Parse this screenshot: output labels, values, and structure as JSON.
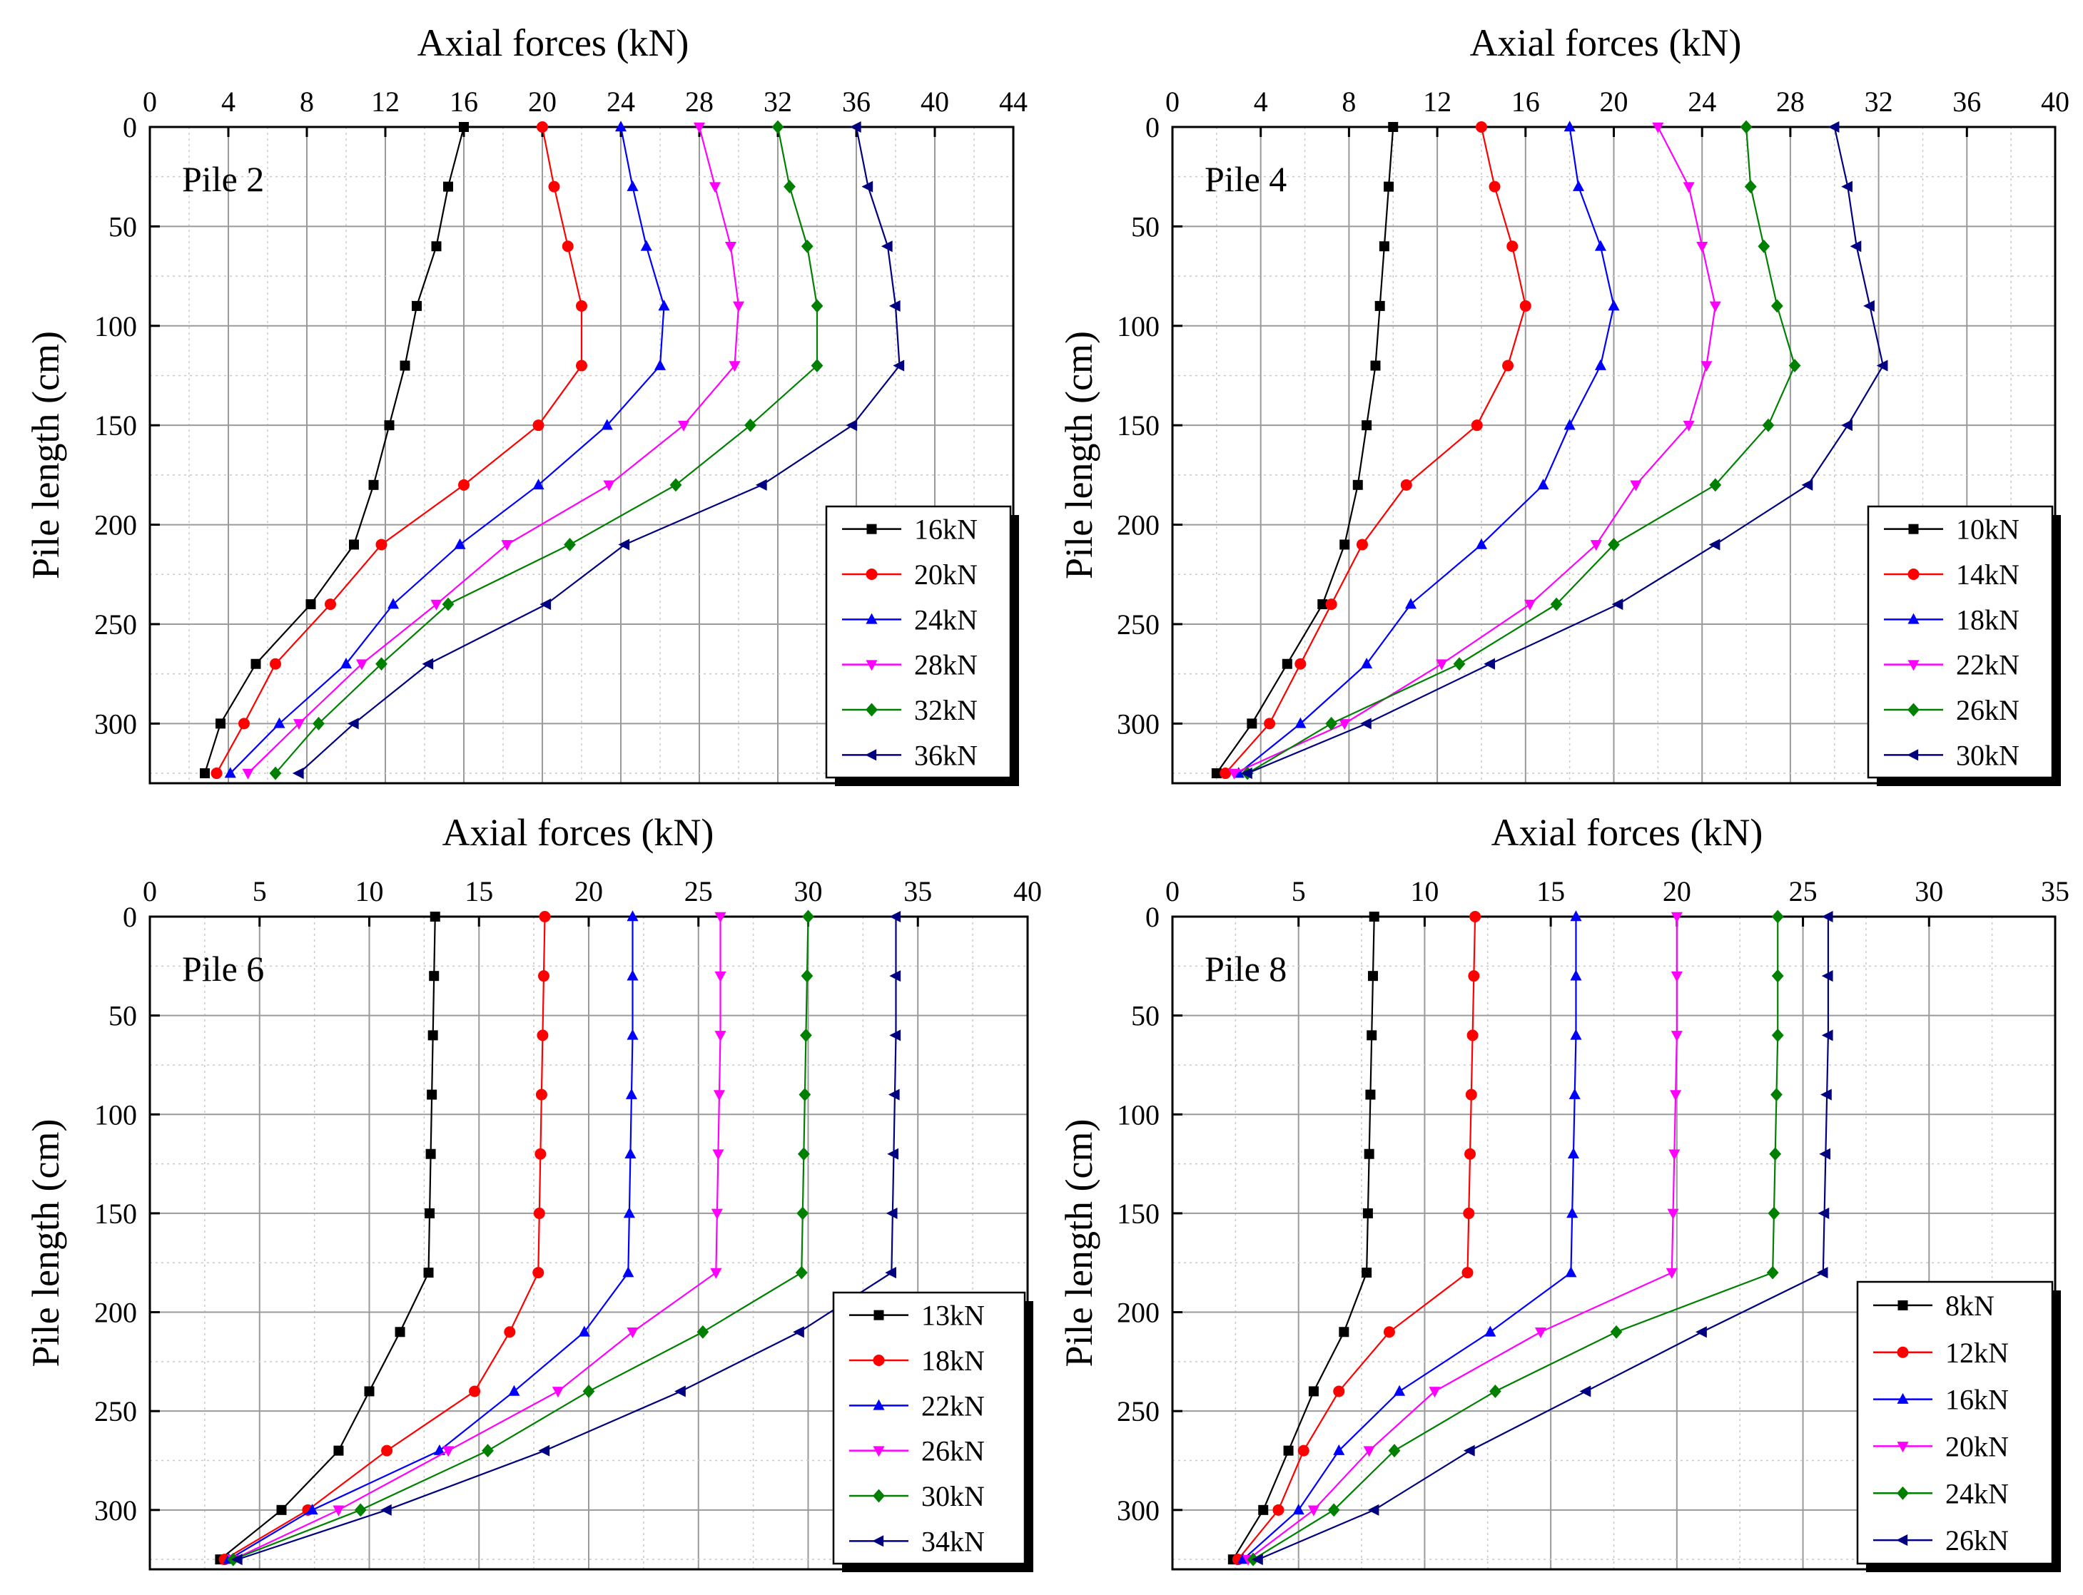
{
  "chart_data": [
    {
      "type": "line",
      "panel_label": "Pile 2",
      "title": "Axial forces (kN)",
      "xlabel": "Axial forces (kN)",
      "ylabel": "Pile length (cm)",
      "xlim": [
        0,
        44
      ],
      "ylim": [
        0,
        330
      ],
      "xticks": [
        0,
        4,
        8,
        12,
        16,
        20,
        24,
        28,
        32,
        36,
        40,
        44
      ],
      "yticks": [
        0,
        50,
        100,
        150,
        200,
        250,
        300
      ],
      "y": [
        0,
        30,
        60,
        90,
        120,
        150,
        180,
        210,
        240,
        270,
        300,
        325
      ],
      "series": [
        {
          "name": "16kN",
          "color": "#000000",
          "marker": "square",
          "values": [
            16.0,
            15.2,
            14.6,
            13.6,
            13.0,
            12.2,
            11.4,
            10.4,
            8.2,
            5.4,
            3.6,
            2.8
          ]
        },
        {
          "name": "20kN",
          "color": "#ff0000",
          "marker": "circle",
          "values": [
            20.0,
            20.6,
            21.3,
            22.0,
            22.0,
            19.8,
            16.0,
            11.8,
            9.2,
            6.4,
            4.8,
            3.4
          ]
        },
        {
          "name": "24kN",
          "color": "#0000ff",
          "marker": "triangle-up",
          "values": [
            24.0,
            24.6,
            25.3,
            26.2,
            26.0,
            23.3,
            19.8,
            15.8,
            12.4,
            10.0,
            6.6,
            4.1
          ]
        },
        {
          "name": "28kN",
          "color": "#ff00ff",
          "marker": "triangle-down",
          "values": [
            28.0,
            28.8,
            29.6,
            30.0,
            29.8,
            27.2,
            23.4,
            18.2,
            14.6,
            10.8,
            7.6,
            5.0
          ]
        },
        {
          "name": "32kN",
          "color": "#008000",
          "marker": "diamond",
          "values": [
            32.0,
            32.6,
            33.5,
            34.0,
            34.0,
            30.6,
            26.8,
            21.4,
            15.2,
            11.8,
            8.6,
            6.4
          ]
        },
        {
          "name": "36kN",
          "color": "#000080",
          "marker": "triangle-left",
          "values": [
            36.0,
            36.6,
            37.6,
            38.0,
            38.2,
            35.8,
            31.2,
            24.2,
            20.2,
            14.2,
            10.4,
            7.6
          ]
        }
      ]
    },
    {
      "type": "line",
      "panel_label": "Pile 4",
      "title": "Axial forces (kN)",
      "xlabel": "Axial forces (kN)",
      "ylabel": "Pile length (cm)",
      "xlim": [
        0,
        40
      ],
      "ylim": [
        0,
        330
      ],
      "xticks": [
        0,
        4,
        8,
        12,
        16,
        20,
        24,
        28,
        32,
        36,
        40
      ],
      "yticks": [
        0,
        50,
        100,
        150,
        200,
        250,
        300
      ],
      "y": [
        0,
        30,
        60,
        90,
        120,
        150,
        180,
        210,
        240,
        270,
        300,
        325
      ],
      "series": [
        {
          "name": "10kN",
          "color": "#000000",
          "marker": "square",
          "values": [
            10.0,
            9.8,
            9.6,
            9.4,
            9.2,
            8.8,
            8.4,
            7.8,
            6.8,
            5.2,
            3.6,
            2.0
          ]
        },
        {
          "name": "14kN",
          "color": "#ff0000",
          "marker": "circle",
          "values": [
            14.0,
            14.6,
            15.4,
            16.0,
            15.2,
            13.8,
            10.6,
            8.6,
            7.2,
            5.8,
            4.4,
            2.4
          ]
        },
        {
          "name": "18kN",
          "color": "#0000ff",
          "marker": "triangle-up",
          "values": [
            18.0,
            18.4,
            19.4,
            20.0,
            19.4,
            18.0,
            16.8,
            14.0,
            10.8,
            8.8,
            5.8,
            3.0
          ]
        },
        {
          "name": "22kN",
          "color": "#ff00ff",
          "marker": "triangle-down",
          "values": [
            22.0,
            23.4,
            24.0,
            24.6,
            24.2,
            23.4,
            21.0,
            19.2,
            16.2,
            12.2,
            7.8,
            2.8
          ]
        },
        {
          "name": "26kN",
          "color": "#008000",
          "marker": "diamond",
          "values": [
            26.0,
            26.2,
            26.8,
            27.4,
            28.2,
            27.0,
            24.6,
            20.0,
            17.4,
            13.0,
            7.2,
            3.4
          ]
        },
        {
          "name": "30kN",
          "color": "#000080",
          "marker": "triangle-left",
          "values": [
            30.0,
            30.6,
            31.0,
            31.6,
            32.2,
            30.6,
            28.8,
            24.6,
            20.2,
            14.4,
            8.8,
            3.4
          ]
        }
      ]
    },
    {
      "type": "line",
      "panel_label": "Pile 6",
      "title": "Axial forces (kN)",
      "xlabel": "Axial forces (kN)",
      "ylabel": "Pile length (cm)",
      "xlim": [
        0,
        40
      ],
      "ylim": [
        0,
        330
      ],
      "xticks": [
        0,
        5,
        10,
        15,
        20,
        25,
        30,
        35,
        40
      ],
      "yticks": [
        0,
        50,
        100,
        150,
        200,
        250,
        300
      ],
      "y": [
        0,
        30,
        60,
        90,
        120,
        150,
        180,
        210,
        240,
        270,
        300,
        325
      ],
      "series": [
        {
          "name": "13kN",
          "color": "#000000",
          "marker": "square",
          "values": [
            13.0,
            12.95,
            12.9,
            12.85,
            12.8,
            12.75,
            12.7,
            11.4,
            10.0,
            8.6,
            6.0,
            3.2
          ]
        },
        {
          "name": "18kN",
          "color": "#ff0000",
          "marker": "circle",
          "values": [
            18.0,
            17.95,
            17.9,
            17.85,
            17.8,
            17.75,
            17.7,
            16.4,
            14.8,
            10.8,
            7.2,
            3.4
          ]
        },
        {
          "name": "22kN",
          "color": "#0000ff",
          "marker": "triangle-up",
          "values": [
            22.0,
            22.0,
            22.0,
            21.95,
            21.9,
            21.85,
            21.8,
            19.8,
            16.6,
            13.2,
            7.4,
            3.6
          ]
        },
        {
          "name": "26kN",
          "color": "#ff00ff",
          "marker": "triangle-down",
          "values": [
            26.0,
            26.0,
            26.0,
            25.95,
            25.9,
            25.85,
            25.8,
            22.0,
            18.6,
            13.6,
            8.6,
            3.8
          ]
        },
        {
          "name": "30kN",
          "color": "#008000",
          "marker": "diamond",
          "values": [
            30.0,
            29.95,
            29.9,
            29.85,
            29.8,
            29.75,
            29.7,
            25.2,
            20.0,
            15.4,
            9.6,
            3.8
          ]
        },
        {
          "name": "34kN",
          "color": "#000080",
          "marker": "triangle-left",
          "values": [
            34.0,
            34.0,
            34.0,
            33.95,
            33.9,
            33.85,
            33.8,
            29.6,
            24.2,
            18.0,
            10.8,
            4.0
          ]
        }
      ]
    },
    {
      "type": "line",
      "panel_label": "Pile 8",
      "title": "Axial forces (kN)",
      "xlabel": "Axial forces (kN)",
      "ylabel": "Pile length (cm)",
      "xlim": [
        0,
        35
      ],
      "ylim": [
        0,
        330
      ],
      "xticks": [
        0,
        5,
        10,
        15,
        20,
        25,
        30,
        35
      ],
      "yticks": [
        0,
        50,
        100,
        150,
        200,
        250,
        300
      ],
      "y": [
        0,
        30,
        60,
        90,
        120,
        150,
        180,
        210,
        240,
        270,
        300,
        325
      ],
      "series": [
        {
          "name": "8kN",
          "color": "#000000",
          "marker": "square",
          "values": [
            8.0,
            7.95,
            7.9,
            7.85,
            7.8,
            7.75,
            7.7,
            6.8,
            5.6,
            4.6,
            3.6,
            2.4
          ]
        },
        {
          "name": "12kN",
          "color": "#ff0000",
          "marker": "circle",
          "values": [
            12.0,
            11.95,
            11.9,
            11.85,
            11.8,
            11.75,
            11.7,
            8.6,
            6.6,
            5.2,
            4.2,
            2.6
          ]
        },
        {
          "name": "16kN",
          "color": "#0000ff",
          "marker": "triangle-up",
          "values": [
            16.0,
            16.0,
            16.0,
            15.95,
            15.9,
            15.85,
            15.8,
            12.6,
            9.0,
            6.6,
            5.0,
            2.8
          ]
        },
        {
          "name": "20kN",
          "color": "#ff00ff",
          "marker": "triangle-down",
          "values": [
            20.0,
            20.0,
            20.0,
            19.95,
            19.9,
            19.85,
            19.8,
            14.6,
            10.4,
            7.8,
            5.6,
            3.0
          ]
        },
        {
          "name": "24kN",
          "color": "#008000",
          "marker": "diamond",
          "values": [
            24.0,
            24.0,
            24.0,
            23.95,
            23.9,
            23.85,
            23.8,
            17.6,
            12.8,
            8.8,
            6.4,
            3.2
          ]
        },
        {
          "name": "26kN",
          "color": "#000080",
          "marker": "triangle-left",
          "values": [
            26.0,
            26.0,
            26.0,
            25.95,
            25.9,
            25.85,
            25.8,
            21.0,
            16.4,
            11.8,
            8.0,
            3.4
          ]
        }
      ]
    }
  ]
}
